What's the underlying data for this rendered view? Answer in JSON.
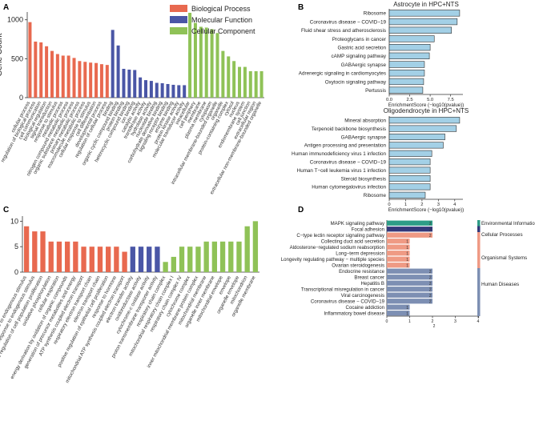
{
  "panels": {
    "A": "A",
    "B": "B",
    "C": "C",
    "D": "D"
  },
  "colors": {
    "bp": "#e8694f",
    "mf": "#4a56a6",
    "cc": "#8fc257",
    "enrich": "#a3d0e6",
    "env": "#2e9c87",
    "cell": "#33387a",
    "org": "#ef9a84",
    "hum": "#7d8fb3"
  },
  "chart_data": [
    {
      "id": "A",
      "type": "bar",
      "ylabel": "Gene Count",
      "ylim": [
        0,
        1100
      ],
      "yticks": [
        0,
        500,
        1000
      ],
      "legend": [
        {
          "name": "Biological Process",
          "color": "#e8694f"
        },
        {
          "name": "Molecular Function",
          "color": "#4a56a6"
        },
        {
          "name": "Cellular Component",
          "color": "#8fc257"
        }
      ],
      "series": [
        {
          "name": "Biological Process",
          "color": "#e8694f",
          "categories": [
            "cellular process",
            "regulation of biological process",
            "cell communication",
            "biological regulation",
            "signal transduction",
            "response to stimulus",
            "metabolic process",
            "nitrogen compound metabolic process",
            "organic substance metabolic process",
            "primary metabolic process",
            "macromolecule metabolic process",
            "cellular response to stimulus",
            "cell differentiation",
            "developmental process",
            "regulation of cellular process"
          ],
          "values": [
            970,
            720,
            710,
            660,
            600,
            560,
            540,
            540,
            510,
            470,
            460,
            450,
            445,
            430,
            420
          ]
        },
        {
          "name": "Molecular Function",
          "color": "#4a56a6",
          "categories": [
            "binding",
            "organic cyclic compound binding",
            "protein binding",
            "heterocyclic compound binding",
            "ion binding",
            "catalytic activity",
            "transferase activity",
            "hydrolase activity",
            "nucleotide binding",
            "carbohydrate derivative binding",
            "signaling receptor binding",
            "enzyme binding",
            "protein kinase activity",
            "molecular transducer activity"
          ],
          "values": [
            870,
            670,
            370,
            360,
            355,
            260,
            225,
            215,
            190,
            185,
            175,
            165,
            160,
            160
          ]
        },
        {
          "name": "Cellular Component",
          "color": "#8fc257",
          "categories": [
            "intracellular",
            "cell periphery",
            "membrane",
            "plasma membrane",
            "cytoplasm",
            "intracellular membrane-bounded organelle",
            "organelle",
            "protein-containing complex",
            "cytosol",
            "nucleus",
            "endomembrane system",
            "cell junction",
            "extracellular region",
            "extracellular non-membrane-bounded organelle"
          ],
          "values": [
            1090,
            960,
            910,
            900,
            880,
            830,
            600,
            530,
            470,
            395,
            395,
            340,
            340,
            340
          ]
        }
      ]
    },
    {
      "id": "B1",
      "type": "bar",
      "title": "Astrocyte in HPC+NTS",
      "xlabel": "EnrichmentScore (−log10(pvalue))",
      "xlim": [
        0,
        9
      ],
      "xticks": [
        "0.0",
        "2.5",
        "5.0",
        "7.5"
      ],
      "xtick_values": [
        0,
        2.5,
        5,
        7.5
      ],
      "categories": [
        "Ribosome",
        "Coronavirus disease − COVID−19",
        "Fluid shear stress and atherosclerosis",
        "Proteoglycans in cancer",
        "Gastric acid secretion",
        "cAMP signaling pathway",
        "GABAergic synapse",
        "Adrenergic signaling in cardiomyocytes",
        "Oxytocin signaling pathway",
        "Pertussis"
      ],
      "values": [
        8.6,
        8.3,
        7.6,
        5.5,
        5.0,
        4.9,
        4.3,
        4.3,
        4.2,
        4.1
      ]
    },
    {
      "id": "B2",
      "type": "bar",
      "title": "Oligodendrocyte in HPC+NTS",
      "xlabel": "EnrichmentScore (−log10(pvalue))",
      "xlim": [
        0,
        4.5
      ],
      "xticks": [
        "0",
        "1",
        "2",
        "3",
        "4"
      ],
      "xtick_values": [
        0,
        1,
        2,
        3,
        4
      ],
      "categories": [
        "Mineral absorption",
        "Terpenoid backbone biosynthesis",
        "GABAergic synapse",
        "Antigen processing and presentation",
        "Human immunodeficiency virus 1 infection",
        "Coronavirus disease − COVID−19",
        "Human T−cell leukemia virus 1 infection",
        "Steroid biosynthesis",
        "Human cytomegalovirus infection",
        "Ribosome"
      ],
      "values": [
        4.3,
        4.1,
        3.4,
        3.3,
        2.6,
        2.5,
        2.5,
        2.5,
        2.5,
        2.2
      ]
    },
    {
      "id": "C",
      "type": "bar",
      "ylabel": "Gene Count",
      "ylim": [
        0,
        11
      ],
      "yticks": [
        0,
        5,
        10
      ],
      "series": [
        {
          "name": "Biological Process",
          "color": "#e8694f",
          "categories": [
            "response to endogenous stimulus",
            "cellular response to endogenous stimulus",
            "positive regulation of cell population proliferation",
            "oxidative phosphorylation",
            "cellular respiration",
            "energy derivation by oxidation of organic compounds",
            "generation of precursor metabolites and energy",
            "ATP synthesis coupled electron transport",
            "respiratory electron transport chain",
            "electron transport chain",
            "positive regulation of epithelial cell proliferation",
            "response to hormone",
            "mitochondrial ATP synthesis coupled electron transport"
          ],
          "values": [
            9,
            8,
            8,
            6,
            6,
            6,
            6,
            5,
            5,
            5,
            5,
            5,
            4
          ]
        },
        {
          "name": "Molecular Function",
          "color": "#4a56a6",
          "categories": [
            "electron transfer activity",
            "oxidoreductase activity",
            "cytochrome-c oxidase activity",
            "proton transmembrane transporter activity"
          ],
          "values": [
            5,
            5,
            5,
            5
          ]
        },
        {
          "name": "Cellular Component",
          "color": "#8fc257",
          "categories": [
            "respiratory chain complex",
            "mitochondrial respiratory chain complex I",
            "respiratory chain complex IV",
            "cytochrome complex",
            "inner mitochondrial membrane protein complex",
            "mitochondrial membrane",
            "organelle inner membrane",
            "mitochondrial envelope",
            "envelope",
            "organelle envelope",
            "mitochondrion",
            "organelle membrane"
          ],
          "values": [
            2,
            3,
            5,
            5,
            5,
            6,
            6,
            6,
            6,
            6,
            9,
            10
          ]
        }
      ]
    },
    {
      "id": "D",
      "type": "bar",
      "xlim": [
        0,
        4
      ],
      "xticks": [
        "0",
        "1",
        "2",
        "3",
        "4"
      ],
      "xtick_values": [
        0,
        1,
        2,
        3,
        4
      ],
      "xlabel": "2",
      "categories": [
        "MAPK signaling pathway",
        "Focal adhesion",
        "C−type lectin receptor signaling pathway",
        "Collecting duct acid secretion",
        "Aldosterone−regulated sodium reabsorption",
        "Long−term depression",
        "Longevity regulating pathway − multiple species",
        "Ovarian steroidogenesis",
        "Endocrine resistance",
        "Breast cancer",
        "Hepatitis B",
        "Transcriptional misregulation in cancer",
        "Viral carcinogenesis",
        "Coronavirus disease − COVID−19",
        "Cocaine addiction",
        "Inflammatory bowel disease"
      ],
      "values": [
        2,
        2,
        2,
        1,
        1,
        1,
        1,
        1,
        2,
        2,
        2,
        2,
        2,
        2,
        1,
        1
      ],
      "labels": [
        "2",
        "2",
        "2",
        "1",
        "1",
        "1",
        "1",
        "1",
        "2",
        "2",
        "2",
        "2",
        "2",
        "2",
        "1",
        "1"
      ],
      "groups": [
        0,
        1,
        2,
        2,
        2,
        2,
        2,
        2,
        3,
        3,
        3,
        3,
        3,
        3,
        3,
        3
      ],
      "group_legend": [
        {
          "name": "Environmental Information Processing",
          "color": "#2e9c87",
          "count": 1
        },
        {
          "name": "Cellular Processes",
          "color": "#33387a",
          "count": 1
        },
        {
          "name": "Organismal Systems",
          "color": "#ef9a84",
          "count": 6
        },
        {
          "name": "Human Diseases",
          "color": "#7d8fb3",
          "count": 8
        }
      ]
    }
  ]
}
